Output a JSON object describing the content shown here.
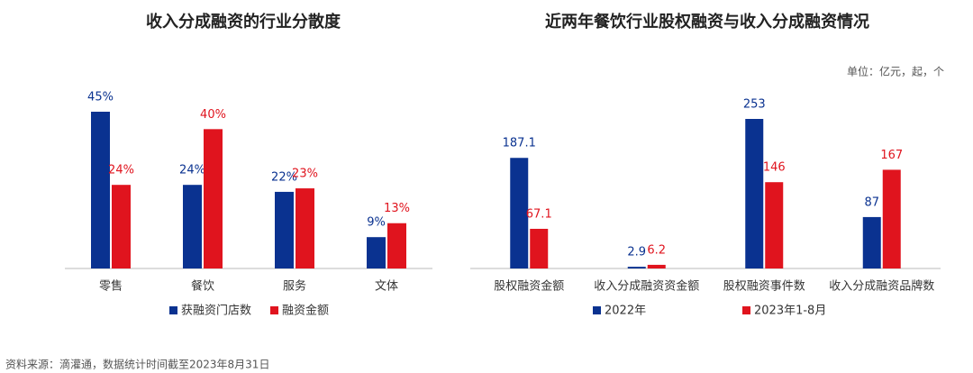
{
  "chart_data": [
    {
      "type": "bar",
      "title": "收入分成融资的行业分散度",
      "categories": [
        "零售",
        "餐饮",
        "服务",
        "文体"
      ],
      "series": [
        {
          "name": "获融资门店数",
          "color": "#0a3290",
          "values": [
            45,
            24,
            22,
            9
          ],
          "value_labels": [
            "45%",
            "24%",
            "22%",
            "9%"
          ]
        },
        {
          "name": "融资金额",
          "color": "#e0141e",
          "values": [
            24,
            40,
            23,
            13
          ],
          "value_labels": [
            "24%",
            "40%",
            "23%",
            "13%"
          ]
        }
      ]
    },
    {
      "type": "bar",
      "title": "近两年餐饮行业股权融资与收入分成融资情况",
      "unit": "单位：亿元，起，个",
      "categories": [
        "股权融资金额",
        "收入分成融资资金额",
        "股权融资事件数",
        "收入分成融资品牌数"
      ],
      "series": [
        {
          "name": "2022年",
          "color": "#0a3290",
          "values": [
            187.1,
            2.9,
            253,
            87
          ]
        },
        {
          "name": "2023年1-8月",
          "color": "#e0141e",
          "values": [
            67.1,
            6.2,
            146,
            167
          ]
        }
      ]
    }
  ],
  "source": "资料来源：滴灌通，数据统计时间截至2023年8月31日"
}
